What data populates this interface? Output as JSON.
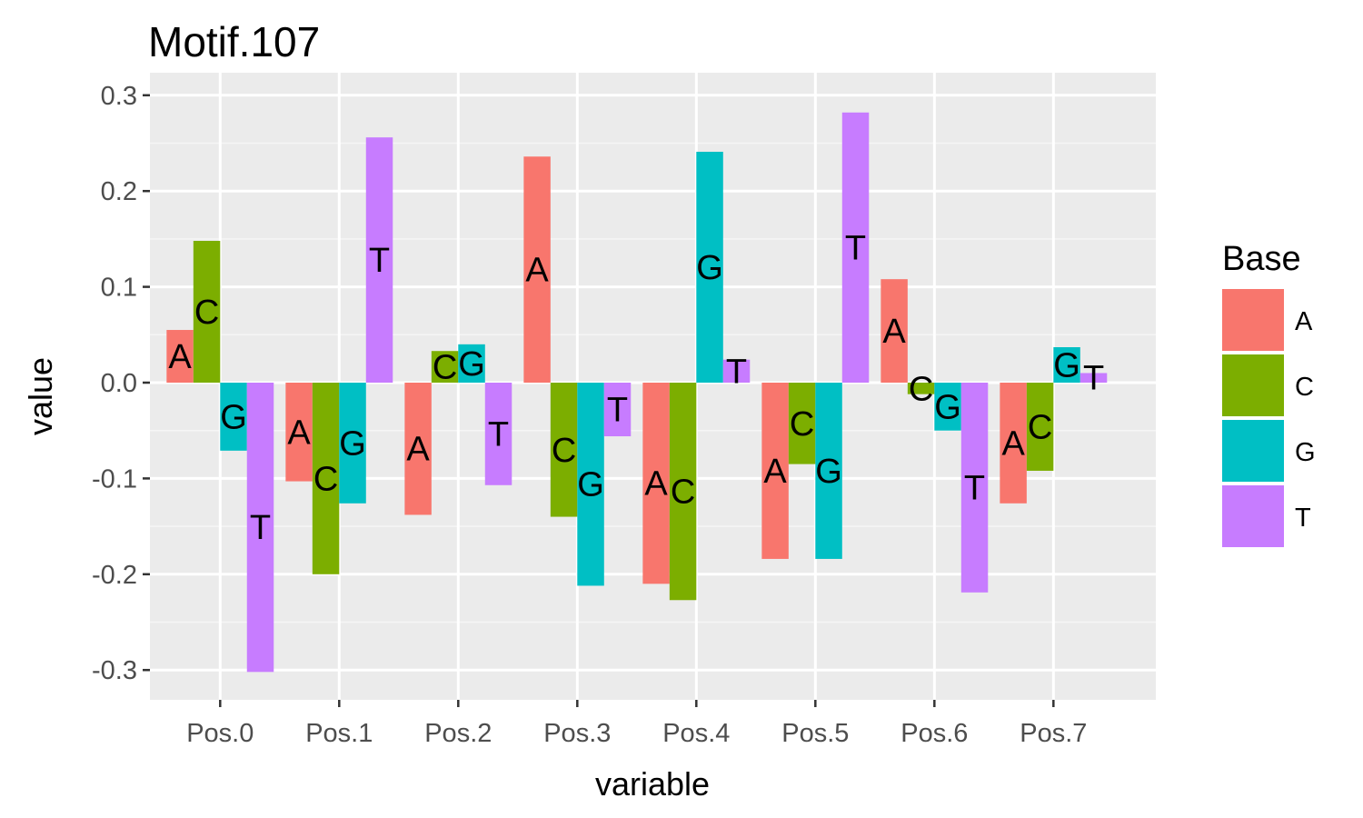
{
  "chart_data": {
    "type": "bar",
    "title": "Motif.107",
    "xlabel": "variable",
    "ylabel": "value",
    "ylim": [
      -0.33,
      0.3
    ],
    "yticks": [
      "0.3",
      "0.2",
      "0.1",
      "0.0",
      "-0.1",
      "-0.2",
      "-0.3"
    ],
    "categories": [
      "Pos.0",
      "Pos.1",
      "Pos.2",
      "Pos.3",
      "Pos.4",
      "Pos.5",
      "Pos.6",
      "Pos.7"
    ],
    "grid": true,
    "legend": {
      "title": "Base",
      "position": "right"
    },
    "series": [
      {
        "name": "A",
        "color": "#F8766D",
        "values": [
          0.055,
          -0.103,
          -0.138,
          0.236,
          -0.21,
          -0.184,
          0.108,
          -0.126
        ]
      },
      {
        "name": "C",
        "color": "#7CAE00",
        "values": [
          0.148,
          -0.2,
          0.033,
          -0.14,
          -0.227,
          -0.085,
          -0.012,
          -0.092
        ]
      },
      {
        "name": "G",
        "color": "#00BFC4",
        "values": [
          -0.071,
          -0.126,
          0.04,
          -0.212,
          0.241,
          -0.184,
          -0.05,
          0.037
        ]
      },
      {
        "name": "T",
        "color": "#C77CFF",
        "values": [
          -0.302,
          0.256,
          -0.107,
          -0.056,
          0.024,
          0.282,
          -0.219,
          0.01
        ]
      }
    ]
  }
}
